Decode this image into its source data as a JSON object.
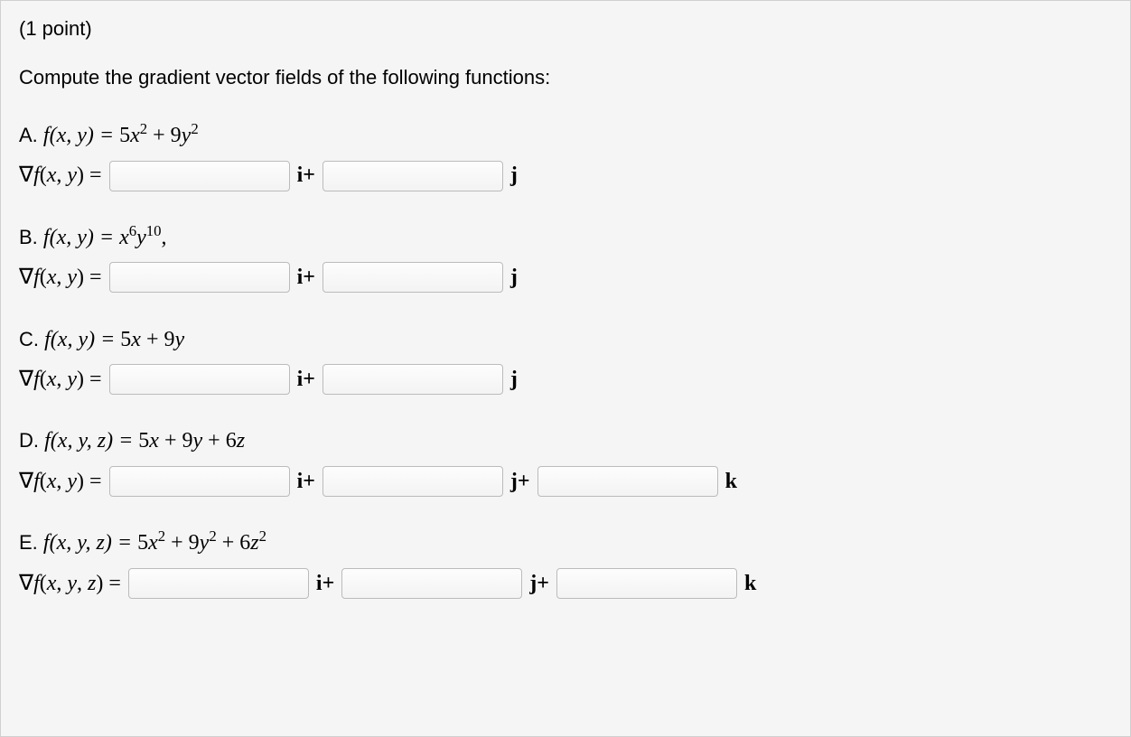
{
  "points_text": "(1 point)",
  "instruction": "Compute the gradient vector fields of the following functions:",
  "unit_vectors": {
    "i_plus": "i+",
    "j": "j",
    "j_plus": "j+",
    "k": "k"
  },
  "parts": {
    "A": {
      "label": "A. ",
      "func_lhs": "f(x, y) = ",
      "grad_lhs": "∇f(x, y) ="
    },
    "B": {
      "label": "B. ",
      "func_lhs": "f(x, y) = ",
      "grad_lhs": "∇f(x, y) ="
    },
    "C": {
      "label": "C. ",
      "func_lhs": "f(x, y) = ",
      "grad_lhs": "∇f(x, y) ="
    },
    "D": {
      "label": "D. ",
      "func_lhs": "f(x, y, z) = ",
      "grad_lhs": "∇f(x, y) ="
    },
    "E": {
      "label": "E. ",
      "func_lhs": "f(x, y, z) = ",
      "grad_lhs": "∇f(x, y, z) ="
    }
  },
  "formulas": {
    "A": {
      "t1": "5",
      "v1": "x",
      "e1": "2",
      "plus1": " + 9",
      "v2": "y",
      "e2": "2"
    },
    "B": {
      "v1": "x",
      "e1": "6",
      "v2": "y",
      "e2": "10",
      "trail": ","
    },
    "C": {
      "expr": "5x + 9y"
    },
    "D": {
      "expr": "5x + 9y + 6z"
    },
    "E": {
      "t1": "5",
      "v1": "x",
      "e1": "2",
      "plus1": " + 9",
      "v2": "y",
      "e2": "2",
      "plus2": " + 6",
      "v3": "z",
      "e3": "2"
    }
  }
}
